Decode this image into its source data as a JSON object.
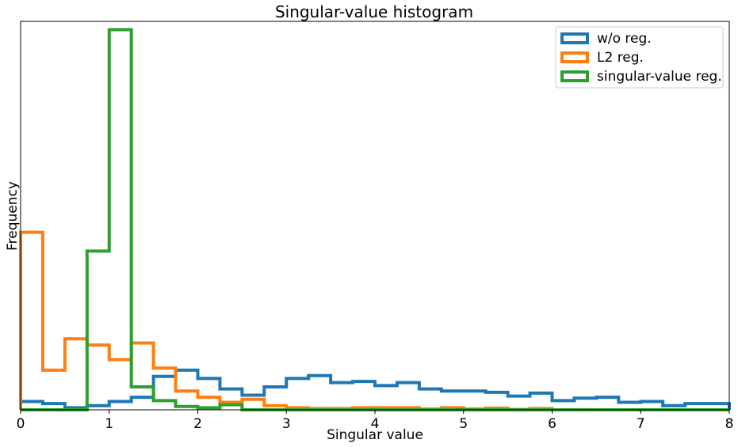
{
  "chart_data": {
    "type": "histogram",
    "title": "Singular-value histogram",
    "xlabel": "Singular value",
    "ylabel": "Frequency",
    "xlim": [
      0,
      8
    ],
    "ylim": [
      0,
      0.93
    ],
    "y_ticks_visible": false,
    "grid": false,
    "legend_position": "top-right",
    "x_ticks": [
      "0",
      "1",
      "2",
      "3",
      "4",
      "5",
      "6",
      "7",
      "8"
    ],
    "bin_edges": [
      0,
      0.25,
      0.5,
      0.75,
      1.0,
      1.25,
      1.5,
      1.75,
      2.0,
      2.25,
      2.5,
      2.75,
      3.0,
      3.25,
      3.5,
      3.75,
      4.0,
      4.25,
      4.5,
      4.75,
      5.0,
      5.25,
      5.5,
      5.75,
      6.0,
      6.25,
      6.5,
      6.75,
      7.0,
      7.25,
      7.5,
      7.75,
      8.0
    ],
    "series": [
      {
        "name": "w/o reg.",
        "color": "#1f77b4",
        "values": [
          0.02,
          0.015,
          0.005,
          0.01,
          0.02,
          0.03,
          0.08,
          0.095,
          0.075,
          0.05,
          0.035,
          0.055,
          0.075,
          0.082,
          0.065,
          0.068,
          0.058,
          0.065,
          0.05,
          0.045,
          0.045,
          0.042,
          0.033,
          0.04,
          0.022,
          0.028,
          0.03,
          0.018,
          0.02,
          0.01,
          0.015,
          0.015
        ]
      },
      {
        "name": "L2 reg.",
        "color": "#ff7f0e",
        "values": [
          0.425,
          0.095,
          0.17,
          0.155,
          0.12,
          0.16,
          0.1,
          0.045,
          0.03,
          0.018,
          0.025,
          0.01,
          0.005,
          0.003,
          0.003,
          0.005,
          0.005,
          0.005,
          0.002,
          0.005,
          0.002,
          0.004,
          0.001,
          0.003,
          0.0,
          0.0,
          0.0,
          0.0,
          0.0,
          0.0,
          0.0,
          0.0
        ]
      },
      {
        "name": "singular-value reg.",
        "color": "#2ca02c",
        "values": [
          0.0,
          0.0,
          0.0,
          0.38,
          0.91,
          0.055,
          0.022,
          0.008,
          0.005,
          0.012,
          0.0,
          0.0,
          0.0,
          0.0,
          0.0,
          0.0,
          0.0,
          0.0,
          0.0,
          0.0,
          0.0,
          0.0,
          0.0,
          0.0,
          0.0,
          0.0,
          0.0,
          0.0,
          0.0,
          0.0,
          0.0,
          0.0
        ]
      }
    ]
  }
}
